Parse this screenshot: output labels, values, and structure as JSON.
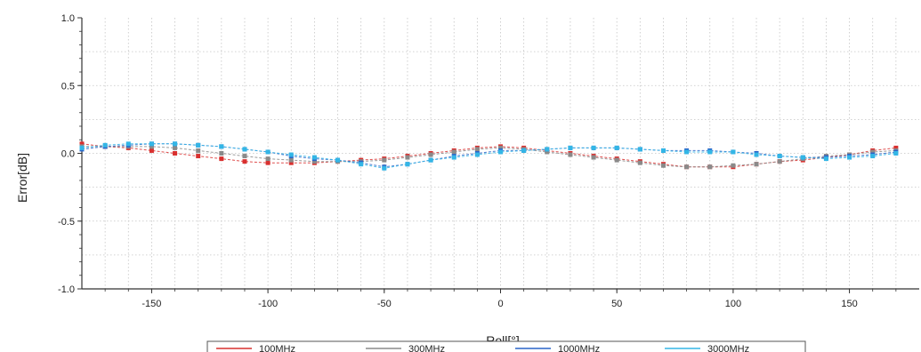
{
  "chart_data": {
    "type": "line",
    "xlabel": "Roll[°]",
    "ylabel": "Error[dB]",
    "xlim": [
      -180,
      180
    ],
    "ylim": [
      -1.0,
      1.0
    ],
    "grid": true,
    "legend_position": "bottom-center",
    "x_ticks": [
      -150,
      -100,
      -50,
      0,
      50,
      100,
      150
    ],
    "y_ticks": [
      "1.0",
      "0.5",
      "0.0",
      "-0.5",
      "-1.0"
    ],
    "y_tick_values": [
      1.0,
      0.5,
      0.0,
      -0.5,
      -1.0
    ],
    "x": [
      -180,
      -170,
      -160,
      -150,
      -140,
      -130,
      -120,
      -110,
      -100,
      -90,
      -80,
      -70,
      -60,
      -50,
      -40,
      -30,
      -20,
      -10,
      0,
      10,
      20,
      30,
      40,
      50,
      60,
      70,
      80,
      90,
      100,
      110,
      120,
      130,
      140,
      150,
      160,
      170
    ],
    "series": [
      {
        "name": "100MHz",
        "color": "#d9302f",
        "values": [
          0.07,
          0.05,
          0.04,
          0.02,
          0.0,
          -0.02,
          -0.04,
          -0.06,
          -0.07,
          -0.07,
          -0.07,
          -0.06,
          -0.05,
          -0.04,
          -0.02,
          0.0,
          0.02,
          0.04,
          0.05,
          0.04,
          0.02,
          0.0,
          -0.02,
          -0.04,
          -0.06,
          -0.08,
          -0.1,
          -0.1,
          -0.1,
          -0.08,
          -0.06,
          -0.05,
          -0.03,
          -0.01,
          0.02,
          0.04
        ]
      },
      {
        "name": "300MHz",
        "color": "#8a8a8a",
        "values": [
          0.05,
          0.05,
          0.05,
          0.05,
          0.04,
          0.02,
          0.0,
          -0.02,
          -0.04,
          -0.05,
          -0.06,
          -0.06,
          -0.06,
          -0.05,
          -0.03,
          -0.01,
          0.01,
          0.03,
          0.04,
          0.03,
          0.01,
          -0.01,
          -0.03,
          -0.05,
          -0.07,
          -0.09,
          -0.1,
          -0.1,
          -0.09,
          -0.08,
          -0.06,
          -0.04,
          -0.02,
          -0.01,
          0.01,
          0.02
        ]
      },
      {
        "name": "1000MHz",
        "color": "#2a63c8",
        "values": [
          0.03,
          0.05,
          0.06,
          0.07,
          0.07,
          0.06,
          0.05,
          0.03,
          0.01,
          -0.02,
          -0.04,
          -0.05,
          -0.07,
          -0.1,
          -0.08,
          -0.05,
          -0.02,
          0.0,
          0.02,
          0.02,
          0.03,
          0.04,
          0.04,
          0.04,
          0.03,
          0.02,
          0.02,
          0.02,
          0.01,
          0.0,
          -0.02,
          -0.03,
          -0.03,
          -0.02,
          -0.01,
          0.01
        ]
      },
      {
        "name": "3000MHz",
        "color": "#33b6e6",
        "values": [
          0.04,
          0.06,
          0.07,
          0.07,
          0.07,
          0.06,
          0.05,
          0.03,
          0.01,
          -0.01,
          -0.03,
          -0.05,
          -0.08,
          -0.11,
          -0.08,
          -0.05,
          -0.03,
          -0.01,
          0.01,
          0.02,
          0.03,
          0.04,
          0.04,
          0.04,
          0.03,
          0.02,
          0.01,
          0.01,
          0.01,
          -0.01,
          -0.02,
          -0.03,
          -0.04,
          -0.03,
          -0.02,
          0.0
        ]
      }
    ]
  }
}
